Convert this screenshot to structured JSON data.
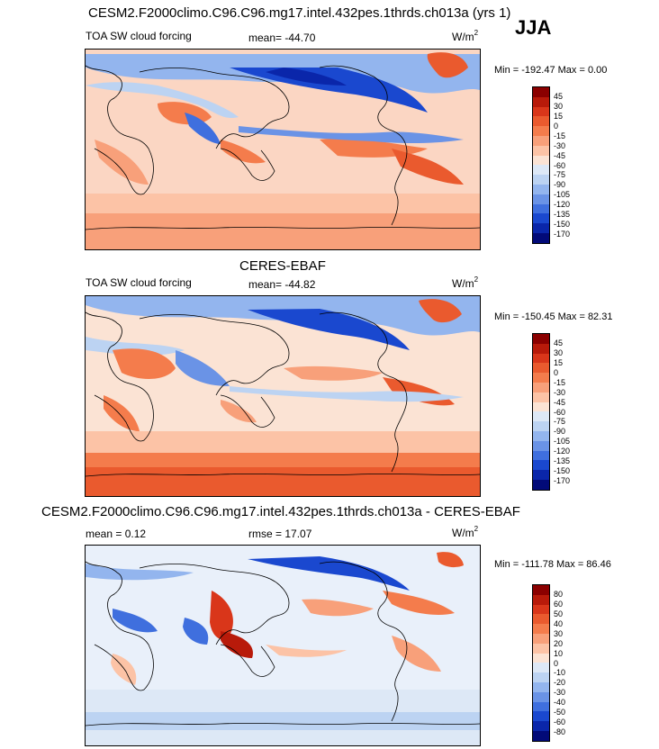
{
  "season": "JJA",
  "panels": [
    {
      "id": "model",
      "title": "CESM2.F2000climo.C96.C96.mg17.intel.432pes.1thrds.ch013a (yrs 1)",
      "left_label": "TOA SW cloud forcing",
      "center_label": "mean= -44.70",
      "units": "W/m",
      "units_exp": "2",
      "min_max": "Min = -192.47 Max =   0.00",
      "colorbar": {
        "levels": [
          "45",
          "30",
          "15",
          "0",
          "-15",
          "-30",
          "-45",
          "-60",
          "-75",
          "-90",
          "-105",
          "-120",
          "-135",
          "-150",
          "-170"
        ],
        "colors": [
          "#8b0000",
          "#b81a0a",
          "#d9361a",
          "#ea5a2e",
          "#f47c4c",
          "#f8a07a",
          "#fcc3a6",
          "#fbe3d4",
          "#dde8f6",
          "#bcd3f2",
          "#93b5ee",
          "#6a93e6",
          "#3f6fde",
          "#1a48cf",
          "#0a26aa",
          "#020a78"
        ]
      }
    },
    {
      "id": "obs",
      "title": "CERES-EBAF",
      "left_label": "TOA SW cloud forcing",
      "center_label": "mean= -44.82",
      "units": "W/m",
      "units_exp": "2",
      "min_max": "Min = -150.45 Max =  82.31",
      "colorbar": {
        "levels": [
          "45",
          "30",
          "15",
          "0",
          "-15",
          "-30",
          "-45",
          "-60",
          "-75",
          "-90",
          "-105",
          "-120",
          "-135",
          "-150",
          "-170"
        ],
        "colors": [
          "#8b0000",
          "#b81a0a",
          "#d9361a",
          "#ea5a2e",
          "#f47c4c",
          "#f8a07a",
          "#fcc3a6",
          "#fbe3d4",
          "#dde8f6",
          "#bcd3f2",
          "#93b5ee",
          "#6a93e6",
          "#3f6fde",
          "#1a48cf",
          "#0a26aa",
          "#020a78"
        ]
      }
    },
    {
      "id": "diff",
      "title": "CESM2.F2000climo.C96.C96.mg17.intel.432pes.1thrds.ch013a - CERES-EBAF",
      "left_label": "mean =   0.12",
      "center_label": "rmse =  17.07",
      "units": "W/m",
      "units_exp": "2",
      "min_max": "Min = -111.78 Max =  86.46",
      "colorbar": {
        "levels": [
          "80",
          "60",
          "50",
          "40",
          "30",
          "20",
          "10",
          "0",
          "-10",
          "-20",
          "-30",
          "-40",
          "-50",
          "-60",
          "-80"
        ],
        "colors": [
          "#8b0000",
          "#b81a0a",
          "#d9361a",
          "#ea5a2e",
          "#f47c4c",
          "#f8a07a",
          "#fcc3a6",
          "#fbe3d4",
          "#dde8f6",
          "#bcd3f2",
          "#93b5ee",
          "#6a93e6",
          "#3f6fde",
          "#1a48cf",
          "#0a26aa",
          "#020a78"
        ]
      }
    }
  ]
}
